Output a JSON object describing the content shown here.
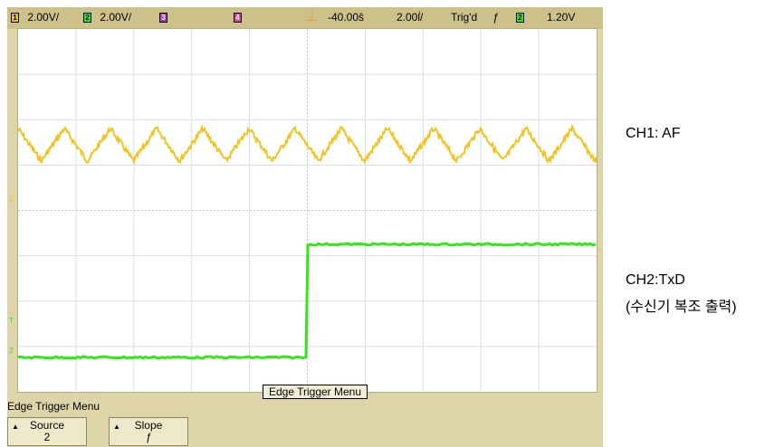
{
  "status": {
    "ch1_num": "1",
    "ch1_scale": "2.00V/",
    "ch2_num": "2",
    "ch2_scale": "2.00V/",
    "ch3_num": "3",
    "ch4_num": "4",
    "timebase_offset": "-40.00ŝ",
    "time_per_div": "2.00ẛ/",
    "trigger_status": "Trig'd",
    "trigger_slope": "ƒ",
    "trigger_ch": "2",
    "trigger_level": "1.20V"
  },
  "menu": {
    "title": "Edge Trigger Menu",
    "popup": "Edge Trigger Menu"
  },
  "softkeys": [
    {
      "label": "Source",
      "value": "2"
    },
    {
      "label": "Slope",
      "value": "ƒ"
    }
  ],
  "labels": {
    "ch1": "CH1: AF",
    "ch2_line1": "CH2:TxD",
    "ch2_line2": "(수신기 복조 출력)"
  },
  "markers": {
    "ch1_ref": "1",
    "trig_ref": "T",
    "ch2_ref": "2"
  },
  "colors": {
    "ch1": "#f5c21b",
    "ch2": "#33e817",
    "ch3": "#a23cb8",
    "ch4": "#e0409a",
    "trigger_marker": "#f29a1a"
  }
}
